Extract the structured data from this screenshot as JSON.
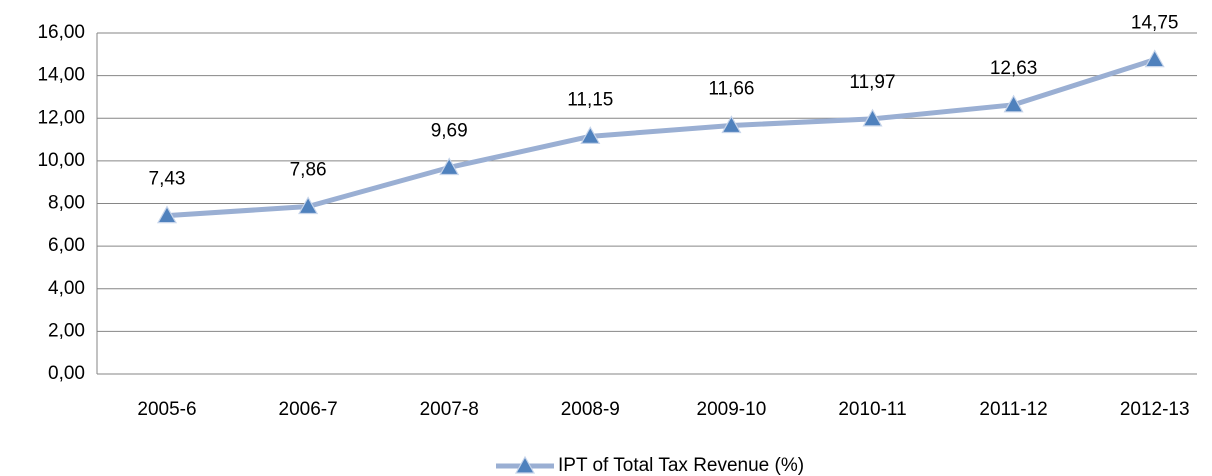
{
  "chart_data": {
    "type": "line",
    "categories": [
      "2005-6",
      "2006-7",
      "2007-8",
      "2008-9",
      "2009-10",
      "2010-11",
      "2011-12",
      "2012-13"
    ],
    "series": [
      {
        "name": "IPT of Total Tax Revenue (%)",
        "color": "#9aafd3",
        "marker_color": "#4f81bd",
        "values": [
          7.43,
          7.86,
          9.69,
          11.15,
          11.66,
          11.97,
          12.63,
          14.75
        ],
        "value_labels": [
          "7,43",
          "7,86",
          "9,69",
          "11,15",
          "11,66",
          "11,97",
          "12,63",
          "14,75"
        ]
      }
    ],
    "ylim": [
      0,
      16
    ],
    "yticks": [
      {
        "value": 0,
        "label": "0,00"
      },
      {
        "value": 2,
        "label": "2,00"
      },
      {
        "value": 4,
        "label": "4,00"
      },
      {
        "value": 6,
        "label": "6,00"
      },
      {
        "value": 8,
        "label": "8,00"
      },
      {
        "value": 10,
        "label": "10,00"
      },
      {
        "value": 12,
        "label": "12,00"
      },
      {
        "value": 14,
        "label": "14,00"
      },
      {
        "value": 16,
        "label": "16,00"
      }
    ],
    "grid": true,
    "legend": "bottom"
  }
}
